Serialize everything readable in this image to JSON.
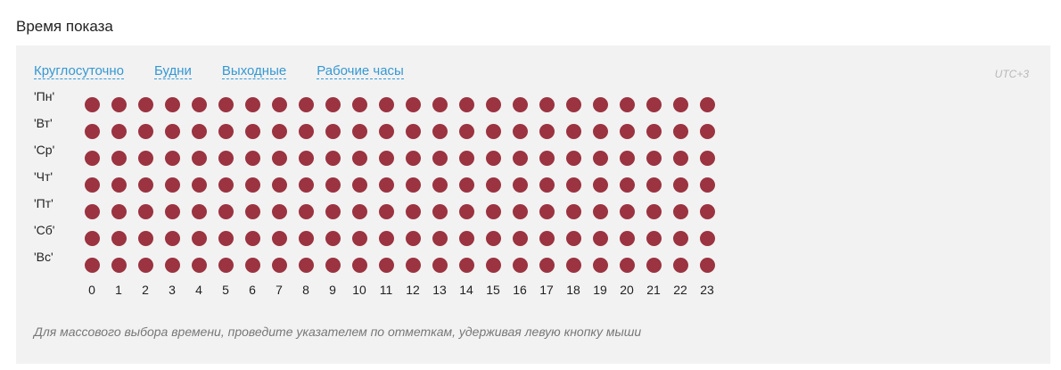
{
  "section": {
    "title": "Время показа"
  },
  "presets": [
    {
      "label": "Круглосуточно"
    },
    {
      "label": "Будни"
    },
    {
      "label": "Выходные"
    },
    {
      "label": "Рабочие часы"
    }
  ],
  "timezone": "UTC+3",
  "days": [
    "'Пн'",
    "'Вт'",
    "'Ср'",
    "'Чт'",
    "'Пт'",
    "'Сб'",
    "'Вс'"
  ],
  "hours": [
    "0",
    "1",
    "2",
    "3",
    "4",
    "5",
    "6",
    "7",
    "8",
    "9",
    "10",
    "11",
    "12",
    "13",
    "14",
    "15",
    "16",
    "17",
    "18",
    "19",
    "20",
    "21",
    "22",
    "23"
  ],
  "selected_color": "#9b3340",
  "all_selected": true,
  "hint": "Для массового выбора времени, проведите указателем по отметкам, удерживая левую кнопку мыши"
}
